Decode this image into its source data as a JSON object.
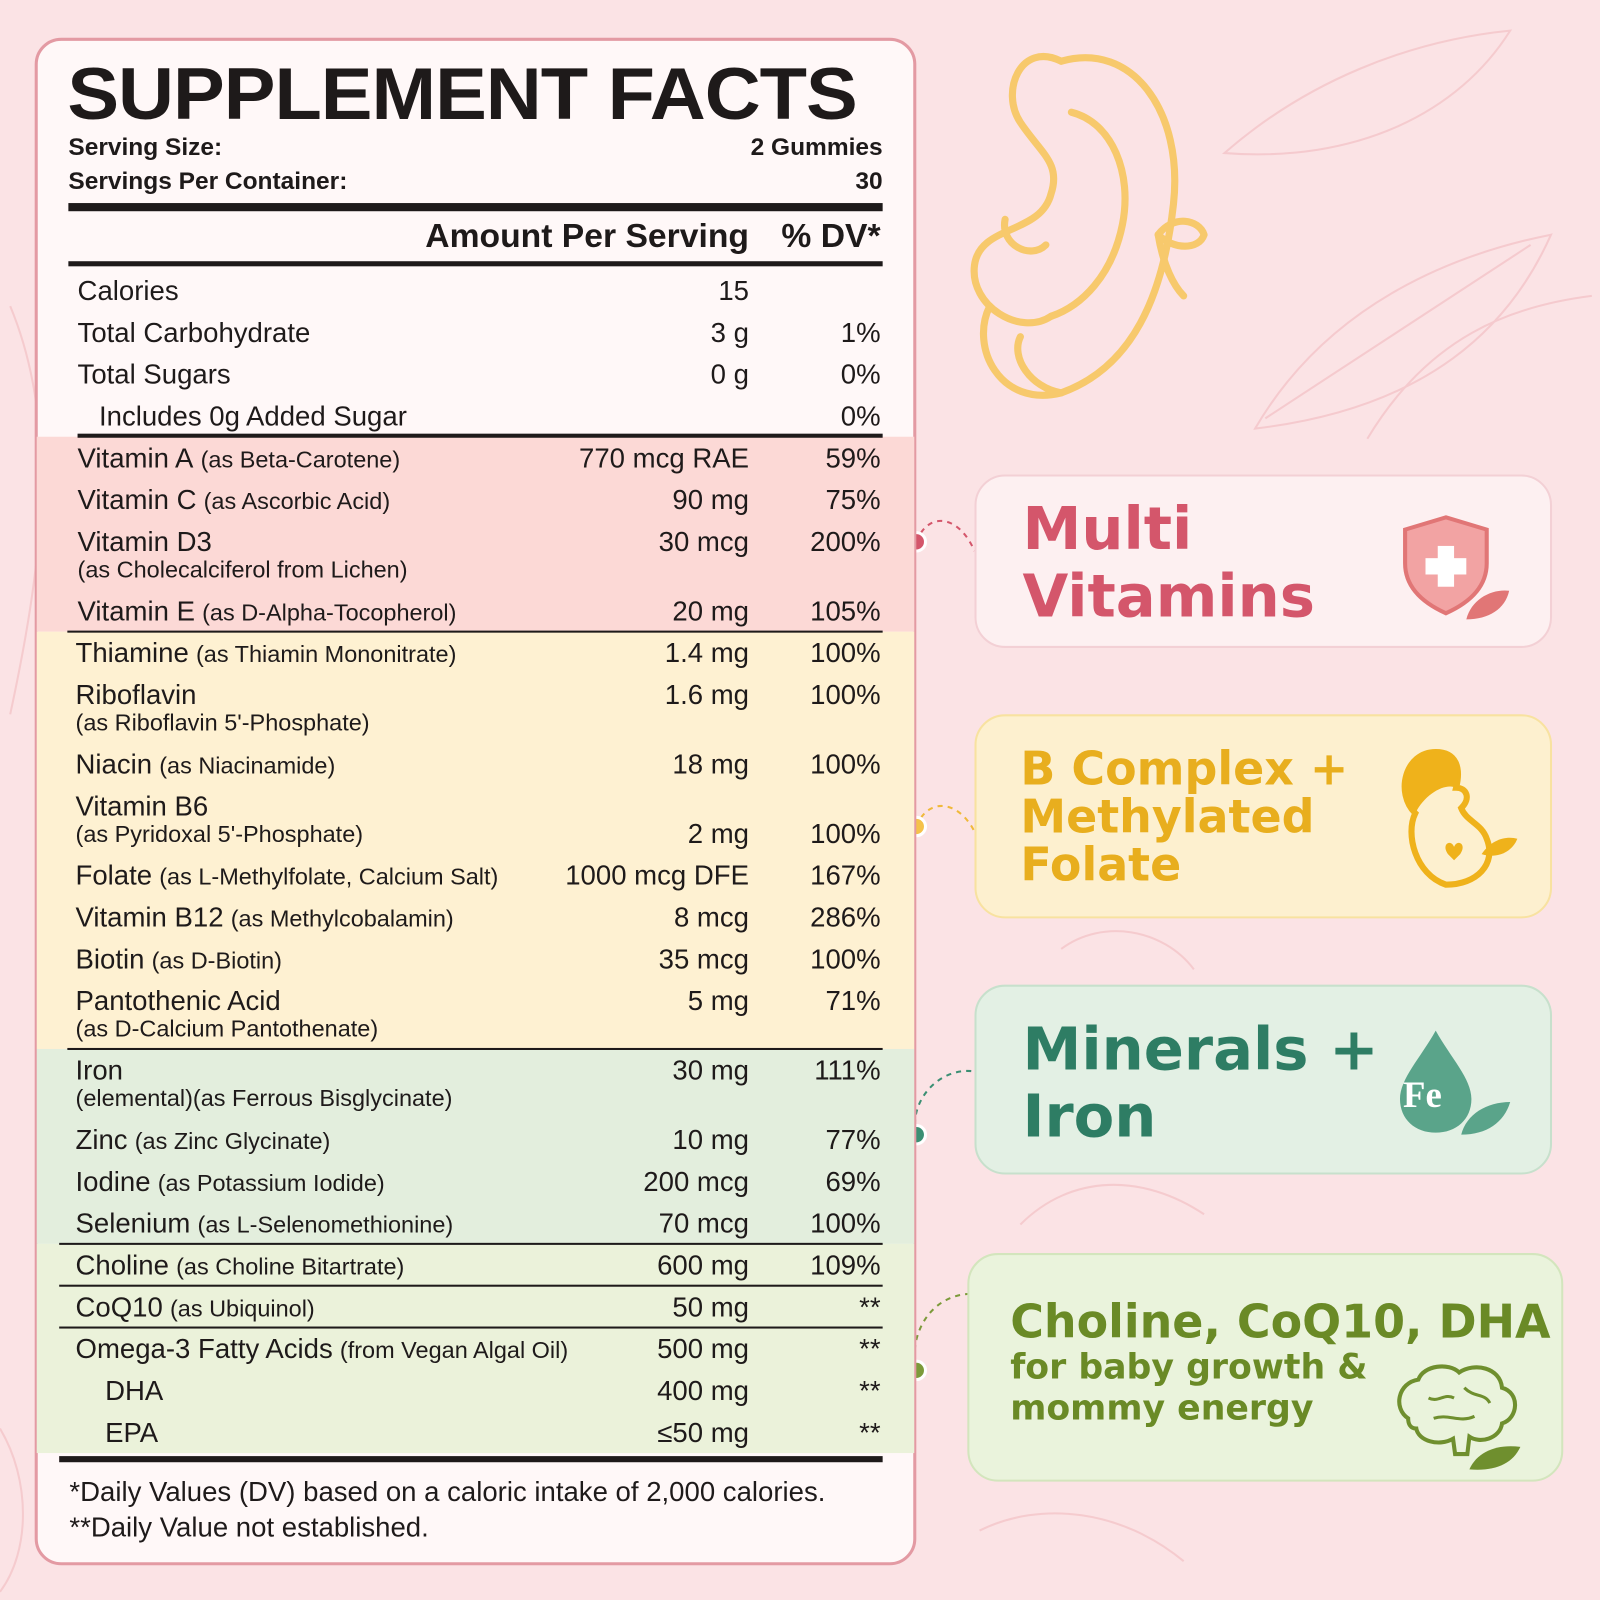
{
  "facts": {
    "title": "SUPPLEMENT FACTS",
    "serving_size": {
      "label": "Serving Size:",
      "value": "2 Gummies"
    },
    "servings_per_container": {
      "label": "Servings Per Container:",
      "value": "30"
    },
    "header": {
      "amount": "Amount Per Serving",
      "dv": "% DV*"
    },
    "sections": [
      {
        "rows": [
          {
            "name": "Calories",
            "amount": "15"
          },
          {
            "name": "Total Carbohydrate",
            "amount": "3 g",
            "dv": "1%"
          },
          {
            "name": "Total Sugars",
            "amount": "0 g",
            "dv": "0%"
          },
          {
            "name": "Includes 0g Added Sugar",
            "dv": "0%"
          }
        ]
      },
      {
        "rows": [
          {
            "name": "Vitamin A",
            "note": "(as Beta-Carotene)",
            "amount": "770 mcg RAE",
            "dv": "59%"
          },
          {
            "name": "Vitamin C",
            "note": "(as Ascorbic Acid)",
            "amount": "90 mg",
            "dv": "75%"
          },
          {
            "name": "Vitamin D3",
            "note": "(as Cholecalciferol from Lichen)",
            "amount": "30 mcg",
            "dv": "200%"
          },
          {
            "name": "Vitamin E",
            "note": "(as D-Alpha-Tocopherol)",
            "amount": "20 mg",
            "dv": "105%"
          }
        ]
      },
      {
        "rows": [
          {
            "name": "Thiamine",
            "note": "(as Thiamin Mononitrate)",
            "amount": "1.4 mg",
            "dv": "100%"
          },
          {
            "name": "Riboflavin",
            "note": "(as Riboflavin 5'-Phosphate)",
            "amount": "1.6 mg",
            "dv": "100%"
          },
          {
            "name": "Niacin",
            "note": "(as Niacinamide)",
            "amount": "18 mg",
            "dv": "100%"
          },
          {
            "name": "Vitamin B6",
            "note": "(as Pyridoxal 5'-Phosphate)",
            "amount": "2 mg",
            "dv": "100%"
          },
          {
            "name": "Folate",
            "note": "(as L-Methylfolate, Calcium Salt)",
            "amount": "1000 mcg DFE",
            "dv": "167%"
          },
          {
            "name": "Vitamin B12",
            "note": "(as Methylcobalamin)",
            "amount": "8 mcg",
            "dv": "286%"
          },
          {
            "name": "Biotin",
            "note": "(as D-Biotin)",
            "amount": "35 mcg",
            "dv": "100%"
          },
          {
            "name": "Pantothenic Acid",
            "note": "(as D-Calcium Pantothenate)",
            "amount": "5 mg",
            "dv": "71%"
          }
        ]
      },
      {
        "rows": [
          {
            "name": "Iron",
            "note": "(elemental)(as Ferrous Bisglycinate)",
            "amount": "30 mg",
            "dv": "111%"
          },
          {
            "name": "Zinc",
            "note": "(as Zinc Glycinate)",
            "amount": "10 mg",
            "dv": "77%"
          },
          {
            "name": "Iodine",
            "note": "(as Potassium Iodide)",
            "amount": "200 mcg",
            "dv": "69%"
          },
          {
            "name": "Selenium",
            "note": "(as L-Selenomethionine)",
            "amount": "70 mcg",
            "dv": "100%"
          }
        ]
      },
      {
        "rows": [
          {
            "name": "Choline",
            "note": "(as Choline Bitartrate)",
            "amount": "600 mg",
            "dv": "109%"
          },
          {
            "name": "CoQ10",
            "note": "(as Ubiquinol)",
            "amount": "50 mg",
            "dv": "**"
          },
          {
            "name": "Omega-3 Fatty Acids",
            "note": "(from Vegan Algal Oil)",
            "amount": "500 mg",
            "dv": "**"
          },
          {
            "name": "DHA",
            "amount": "400 mg",
            "dv": "**"
          },
          {
            "name": "EPA",
            "amount": "≤50 mg",
            "dv": "**"
          }
        ]
      }
    ],
    "footnotes": [
      "*Daily Values (DV) based on a caloric intake of 2,000 calories.",
      "**Daily Value not established."
    ]
  },
  "callouts": [
    {
      "lines": [
        "Multi",
        "Vitamins"
      ]
    },
    {
      "lines": [
        "B Complex +",
        "Methylated",
        "Folate"
      ]
    },
    {
      "lines": [
        "Minerals +",
        "Iron"
      ],
      "icon_text": "Fe"
    },
    {
      "lines": [
        "Choline, CoQ10, DHA"
      ],
      "sublines": [
        "for baby growth &",
        "mommy energy"
      ]
    }
  ]
}
